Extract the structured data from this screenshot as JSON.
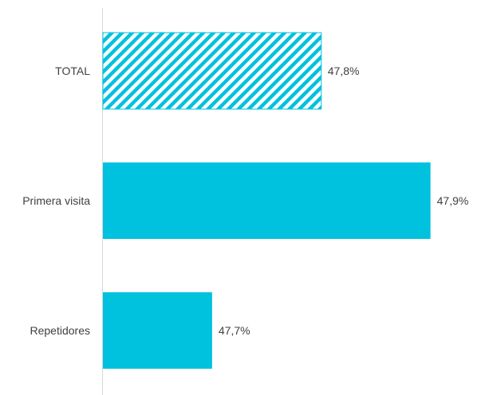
{
  "chart_data": {
    "type": "bar",
    "orientation": "horizontal",
    "categories": [
      "TOTAL",
      "Primera visita",
      "Repetidores"
    ],
    "values": [
      47.8,
      47.9,
      47.7
    ],
    "value_labels": [
      "47,8%",
      "47,9%",
      "47,7%"
    ],
    "unit": "%",
    "xlim": [
      47.6,
      47.92
    ],
    "title": "",
    "xlabel": "",
    "ylabel": "",
    "grid": false,
    "legend": "none",
    "bar_styles": [
      "hatched",
      "solid",
      "solid"
    ],
    "colors": {
      "bar": "#00C1DE",
      "axis": "#D9D9D9",
      "text": "#404040"
    }
  }
}
